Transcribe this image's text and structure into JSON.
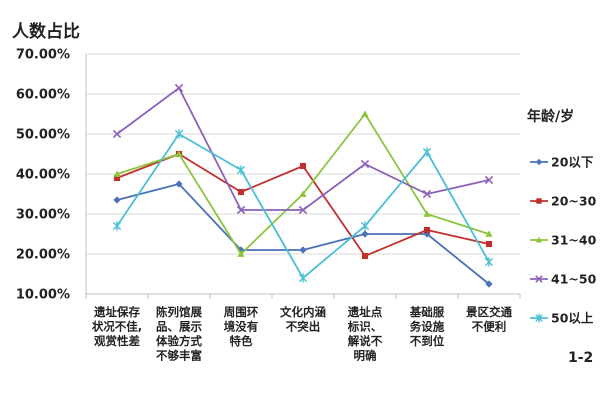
{
  "chart_data": {
    "type": "line",
    "ylabel": "人数占比",
    "ylim": [
      10,
      70
    ],
    "yticks": [
      "70.00%",
      "60.00%",
      "50.00%",
      "40.00%",
      "30.00%",
      "20.00%",
      "10.00%"
    ],
    "categories": [
      [
        "遗址保存",
        "状况不佳,",
        "观赏性差"
      ],
      [
        "陈列馆展",
        "品、展示",
        "体验方式",
        "不够丰富"
      ],
      [
        "周围环",
        "境没有",
        "特色"
      ],
      [
        "文化内涵",
        "不突出"
      ],
      [
        "遗址点",
        "标识、",
        "解说不",
        "明确"
      ],
      [
        "基础服",
        "务设施",
        "不到位"
      ],
      [
        "景区交通",
        "不便利"
      ]
    ],
    "legend_title": "年龄/岁",
    "series": [
      {
        "name": "20以下",
        "color": "#4a72b8",
        "marker": "diamond",
        "values": [
          33.5,
          37.5,
          21,
          21,
          25,
          25,
          12.5
        ]
      },
      {
        "name": "20~30",
        "color": "#c0302d",
        "marker": "square",
        "values": [
          39,
          45,
          35.5,
          42,
          19.5,
          26,
          22.5
        ]
      },
      {
        "name": "31~40",
        "color": "#8cc63f",
        "marker": "triangle",
        "values": [
          40,
          45,
          20,
          35,
          55,
          30,
          25
        ]
      },
      {
        "name": "41~50",
        "color": "#8b62b8",
        "marker": "x",
        "values": [
          50,
          61.5,
          31,
          31,
          42.5,
          35,
          38.5
        ]
      },
      {
        "name": "50以上",
        "color": "#4bbfd6",
        "marker": "star",
        "values": [
          27,
          50,
          41,
          14,
          27,
          45.5,
          18
        ]
      }
    ],
    "corner_label": "1-2"
  }
}
